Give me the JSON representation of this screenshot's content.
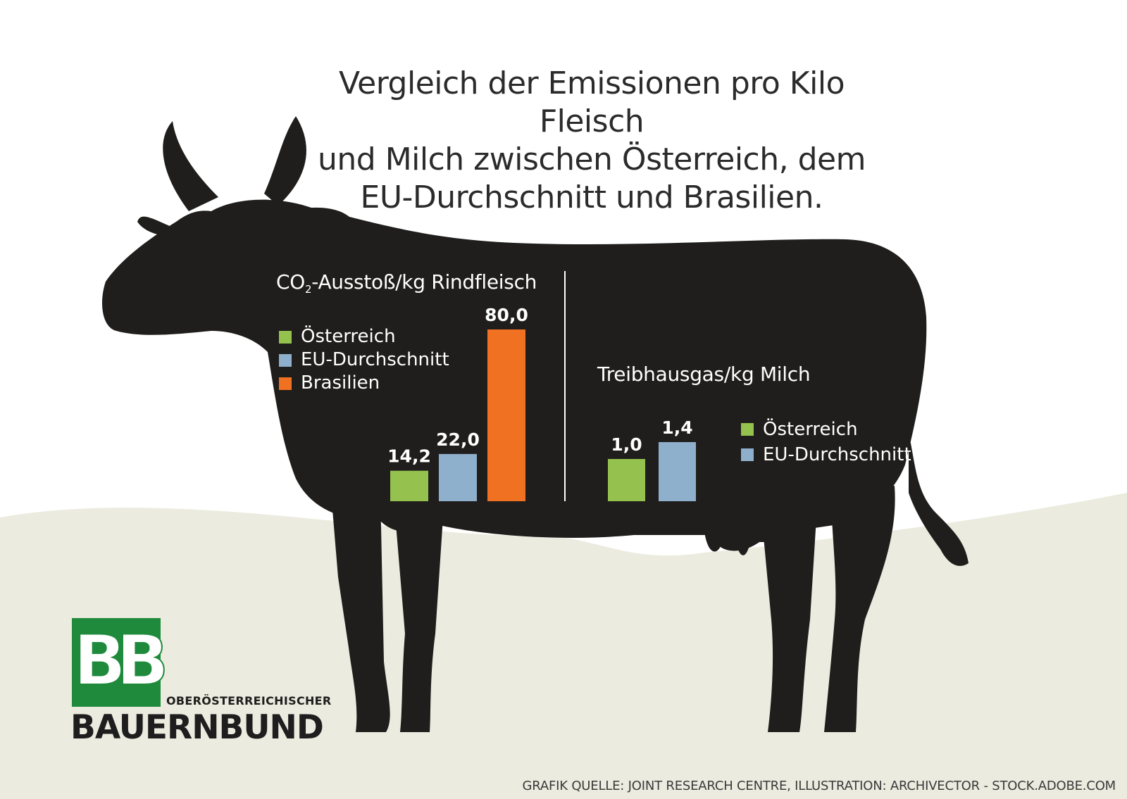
{
  "title_lines": [
    "Vergleich der Emissionen pro Kilo Fleisch",
    "und Milch zwischen Österreich, dem",
    "EU-Durchschnitt und Brasilien."
  ],
  "colors": {
    "austria": "#95c24f",
    "eu": "#8fb0cc",
    "brazil": "#f07122",
    "cow": "#1f1e1c",
    "ground": "#ebebdf",
    "logo_green": "#1f8a3c"
  },
  "chart_data": [
    {
      "type": "bar",
      "title_main": "CO",
      "title_sub": "2",
      "title_rest": "-Ausstoß/kg Rindfleisch",
      "categories": [
        "Österreich",
        "EU-Durchschnitt",
        "Brasilien"
      ],
      "values": [
        14.2,
        22.0,
        80.0
      ],
      "labels": [
        "14,2",
        "22,0",
        "80,0"
      ],
      "legend": [
        "Österreich",
        "EU-Durchschnitt",
        "Brasilien"
      ],
      "ylim": [
        0,
        80
      ],
      "legend_position": "top-left"
    },
    {
      "type": "bar",
      "title": "Treibhausgas/kg Milch",
      "categories": [
        "Österreich",
        "EU-Durchschnitt"
      ],
      "values": [
        1.0,
        1.4
      ],
      "labels": [
        "1,0",
        "1,4"
      ],
      "legend": [
        "Österreich",
        "EU-Durchschnitt"
      ],
      "ylim": [
        0,
        1.4
      ],
      "legend_position": "right"
    }
  ],
  "logo": {
    "letters": "BB",
    "subtitle": "OBERÖSTERREICHISCHER",
    "name": "BAUERNBUND"
  },
  "footer": "GRAFIK QUELLE: JOINT RESEARCH CENTRE, ILLUSTRATION: ARCHIVECTOR - STOCK.ADOBE.COM"
}
